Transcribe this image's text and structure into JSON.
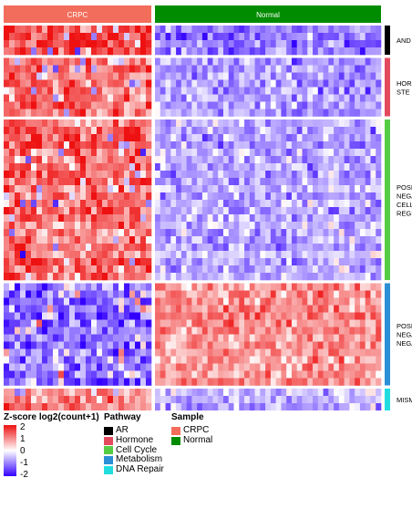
{
  "chart_data": {
    "type": "heatmap",
    "title": "",
    "sample_groups": [
      {
        "name": "CRPC",
        "color": "#f26d5b"
      },
      {
        "name": "Normal",
        "color": "#008c00"
      }
    ],
    "row_groups": [
      {
        "label": "AND",
        "pathway": "AR",
        "rows": 4,
        "color": "#000000"
      },
      {
        "label": "HOR STE",
        "pathway": "Hormone",
        "rows": 8,
        "color": "#e34a5e"
      },
      {
        "label": "POSI NEGA CELL REGI",
        "pathway": "Cell Cycle",
        "rows": 22,
        "color": "#55cc44"
      },
      {
        "label": "POSI NEGA NEGA",
        "pathway": "Metabolism",
        "rows": 14,
        "color": "#2b8fd6"
      },
      {
        "label": "MISM",
        "pathway": "DNA Repair",
        "rows": 3,
        "color": "#22dde0"
      }
    ],
    "row_group_patterns": [
      {
        "crpc": 1.5,
        "normal": -1.0
      },
      {
        "crpc": 1.2,
        "normal": -0.8
      },
      {
        "crpc": 1.3,
        "normal": -0.7
      },
      {
        "crpc": -1.1,
        "normal": 0.9
      },
      {
        "crpc": 1.0,
        "normal": -0.6
      }
    ],
    "zscore_legend": {
      "title": "Z-score log2(count+1)",
      "range": [
        -2,
        2
      ],
      "ticks": [
        "2",
        "1",
        "0",
        "-1",
        "-2"
      ],
      "colors": [
        "#3300ff",
        "#ffffff",
        "#ee1111"
      ]
    },
    "row_label_fragments": [
      "1",
      "1",
      "2",
      "",
      "",
      "2",
      "2",
      "",
      "",
      "",
      "",
      "",
      "",
      "",
      "",
      "",
      "",
      "",
      "",
      "",
      "",
      "",
      "",
      "",
      "",
      "",
      "",
      "",
      "",
      "",
      "",
      "",
      "",
      "",
      "",
      "",
      "",
      "",
      "",
      "",
      "",
      "",
      "",
      "",
      "",
      "",
      "",
      "",
      "",
      ""
    ]
  },
  "legends": {
    "pathway": {
      "title": "Pathway",
      "items": [
        {
          "label": "AR",
          "color": "#000000"
        },
        {
          "label": "Hormone",
          "color": "#e34a5e"
        },
        {
          "label": "Cell Cycle",
          "color": "#55cc44"
        },
        {
          "label": "Metabolism",
          "color": "#2b8fd6"
        },
        {
          "label": "DNA Repair",
          "color": "#22dde0"
        }
      ]
    },
    "sample": {
      "title": "Sample",
      "items": [
        {
          "label": "CRPC",
          "color": "#f26d5b"
        },
        {
          "label": "Normal",
          "color": "#008c00"
        }
      ]
    }
  }
}
